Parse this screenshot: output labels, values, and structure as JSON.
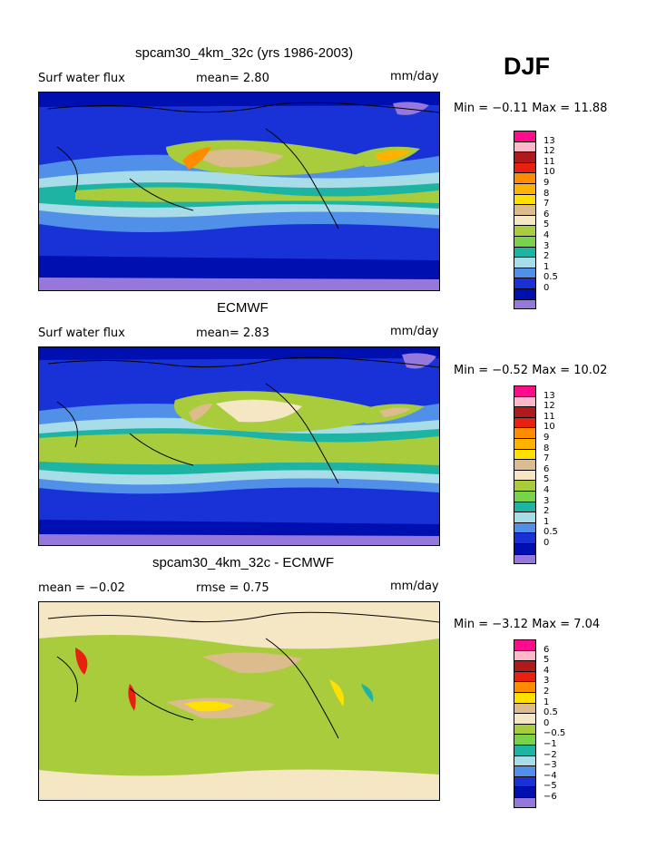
{
  "season": "DJF",
  "panels": [
    {
      "title": "spcam30_4km_32c (yrs 1986-2003)",
      "left_label": "Surf water flux",
      "mid_label": "mean=   2.80",
      "unit": "mm/day",
      "stats": "Min =  −0.11 Max =  11.88",
      "colorbar": {
        "labels": [
          "13",
          "12",
          "11",
          "10",
          "9",
          "8",
          "7",
          "6",
          "5",
          "4",
          "3",
          "2",
          "1",
          "0.5",
          "0"
        ],
        "colors": [
          "#ff0c8c",
          "#ffb8c8",
          "#b01a1a",
          "#e82010",
          "#ff8c00",
          "#ffb300",
          "#ffe000",
          "#dcbc8c",
          "#f5e6c4",
          "#a8cc3c",
          "#78d24a",
          "#1eb4a4",
          "#a8dce8",
          "#5090e8",
          "#1832d8",
          "#0010b0",
          "#9678dc"
        ]
      }
    },
    {
      "title": "ECMWF",
      "left_label": "Surf water flux",
      "mid_label": "mean=   2.83",
      "unit": "mm/day",
      "stats": "Min =  −0.52 Max =  10.02",
      "colorbar": {
        "labels": [
          "13",
          "12",
          "11",
          "10",
          "9",
          "8",
          "7",
          "6",
          "5",
          "4",
          "3",
          "2",
          "1",
          "0.5",
          "0"
        ],
        "colors": [
          "#ff0c8c",
          "#ffb8c8",
          "#b01a1a",
          "#e82010",
          "#ff8c00",
          "#ffb300",
          "#ffe000",
          "#dcbc8c",
          "#f5e6c4",
          "#a8cc3c",
          "#78d24a",
          "#1eb4a4",
          "#a8dce8",
          "#5090e8",
          "#1832d8",
          "#0010b0",
          "#9678dc"
        ]
      }
    },
    {
      "title": "spcam30_4km_32c - ECMWF",
      "left_label": "mean =  −0.02",
      "mid_label": "rmse =   0.75",
      "unit": "mm/day",
      "stats": "Min =  −3.12 Max =   7.04",
      "colorbar": {
        "labels": [
          "6",
          "5",
          "4",
          "3",
          "2",
          "1",
          "0.5",
          "0",
          "−0.5",
          "−1",
          "−2",
          "−3",
          "−4",
          "−5",
          "−6"
        ],
        "colors": [
          "#ff0c8c",
          "#ffb8c8",
          "#b01a1a",
          "#e82010",
          "#ff8c00",
          "#ffe000",
          "#dcbc8c",
          "#f5e6c4",
          "#a8cc3c",
          "#78d24a",
          "#1eb4a4",
          "#a8dce8",
          "#5090e8",
          "#1832d8",
          "#0010b0",
          "#9678dc"
        ]
      }
    }
  ],
  "chart_data": [
    {
      "type": "heatmap",
      "title": "spcam30_4km_32c (yrs 1986-2003)",
      "variable": "Surf water flux",
      "mean": 2.8,
      "unit": "mm/day",
      "min": -0.11,
      "max": 11.88,
      "levels": [
        0,
        0.5,
        1,
        2,
        3,
        4,
        5,
        6,
        7,
        8,
        9,
        10,
        11,
        12,
        13
      ]
    },
    {
      "type": "heatmap",
      "title": "ECMWF",
      "variable": "Surf water flux",
      "mean": 2.83,
      "unit": "mm/day",
      "min": -0.52,
      "max": 10.02,
      "levels": [
        0,
        0.5,
        1,
        2,
        3,
        4,
        5,
        6,
        7,
        8,
        9,
        10,
        11,
        12,
        13
      ]
    },
    {
      "type": "heatmap",
      "title": "spcam30_4km_32c - ECMWF",
      "mean": -0.02,
      "rmse": 0.75,
      "unit": "mm/day",
      "min": -3.12,
      "max": 7.04,
      "levels": [
        -6,
        -5,
        -4,
        -3,
        -2,
        -1,
        -0.5,
        0,
        0.5,
        1,
        2,
        3,
        4,
        5,
        6
      ]
    }
  ]
}
